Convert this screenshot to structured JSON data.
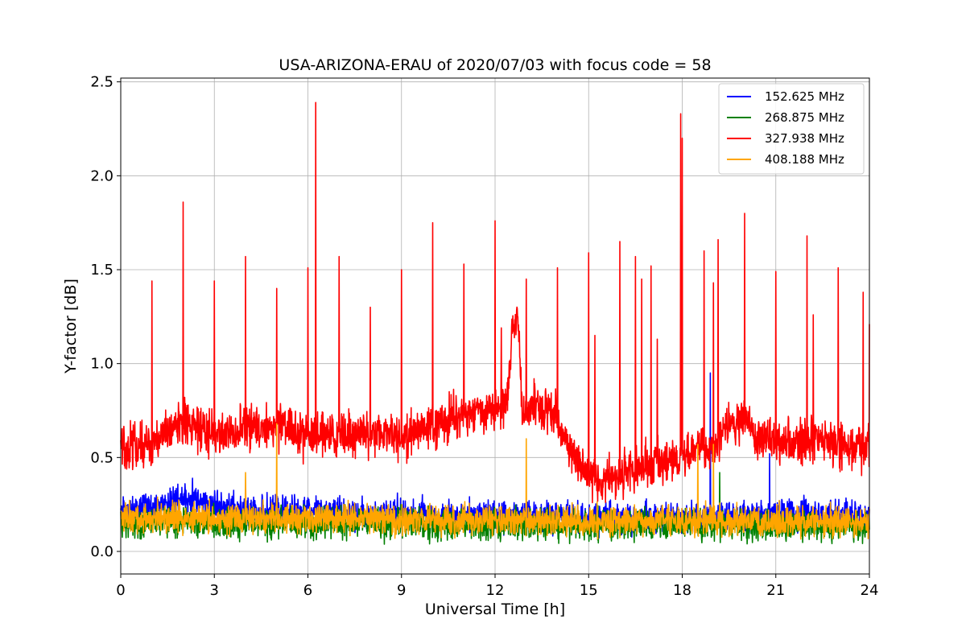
{
  "chart_data": {
    "type": "line",
    "title": "USA-ARIZONA-ERAU of 2020/07/03 with focus code = 58",
    "xlabel": "Universal Time [h]",
    "ylabel": "Y-factor [dB]",
    "xlim": [
      0,
      24
    ],
    "ylim": [
      -0.12,
      2.52
    ],
    "xticks": [
      0,
      3,
      6,
      9,
      12,
      15,
      18,
      21,
      24
    ],
    "xtick_labels": [
      "0",
      "3",
      "6",
      "9",
      "12",
      "15",
      "18",
      "21",
      "24"
    ],
    "yticks": [
      0.0,
      0.5,
      1.0,
      1.5,
      2.0,
      2.5
    ],
    "ytick_labels": [
      "0.0",
      "0.5",
      "1.0",
      "1.5",
      "2.0",
      "2.5"
    ],
    "grid": true,
    "legend_position": "top-right",
    "series": [
      {
        "name": "152.625 MHz",
        "color": "#0000ff",
        "noise_amplitude": 0.06,
        "baseline": [
          [
            0,
            0.21
          ],
          [
            1,
            0.24
          ],
          [
            2,
            0.27
          ],
          [
            2.5,
            0.28
          ],
          [
            3,
            0.24
          ],
          [
            4,
            0.22
          ],
          [
            6,
            0.21
          ],
          [
            9,
            0.2
          ],
          [
            12,
            0.19
          ],
          [
            15,
            0.18
          ],
          [
            18,
            0.18
          ],
          [
            21,
            0.19
          ],
          [
            24,
            0.2
          ]
        ],
        "spikes": [
          [
            2.3,
            0.39
          ],
          [
            18.9,
            0.95
          ],
          [
            20.8,
            0.52
          ]
        ]
      },
      {
        "name": "268.875 MHz",
        "color": "#008000",
        "noise_amplitude": 0.06,
        "baseline": [
          [
            0,
            0.15
          ],
          [
            3,
            0.15
          ],
          [
            6,
            0.15
          ],
          [
            9,
            0.15
          ],
          [
            12,
            0.14
          ],
          [
            15,
            0.14
          ],
          [
            18,
            0.14
          ],
          [
            21,
            0.14
          ],
          [
            24,
            0.13
          ]
        ],
        "spikes": [
          [
            19.2,
            0.42
          ]
        ]
      },
      {
        "name": "327.938 MHz",
        "color": "#ff0000",
        "noise_amplitude": 0.09,
        "baseline": [
          [
            0,
            0.55
          ],
          [
            1,
            0.58
          ],
          [
            2,
            0.68
          ],
          [
            3,
            0.62
          ],
          [
            4,
            0.65
          ],
          [
            5,
            0.68
          ],
          [
            6,
            0.62
          ],
          [
            8,
            0.62
          ],
          [
            9,
            0.62
          ],
          [
            10,
            0.66
          ],
          [
            11,
            0.74
          ],
          [
            12,
            0.76
          ],
          [
            12.4,
            0.78
          ],
          [
            12.55,
            1.2
          ],
          [
            12.75,
            1.25
          ],
          [
            12.85,
            0.75
          ],
          [
            13.5,
            0.78
          ],
          [
            14,
            0.7
          ],
          [
            14.5,
            0.5
          ],
          [
            15,
            0.42
          ],
          [
            15.5,
            0.38
          ],
          [
            16,
            0.4
          ],
          [
            17,
            0.47
          ],
          [
            18,
            0.5
          ],
          [
            19,
            0.58
          ],
          [
            19.5,
            0.66
          ],
          [
            20,
            0.7
          ],
          [
            20.5,
            0.6
          ],
          [
            21,
            0.58
          ],
          [
            22,
            0.6
          ],
          [
            23,
            0.56
          ],
          [
            24,
            0.56
          ]
        ],
        "spikes": [
          [
            1.0,
            1.44
          ],
          [
            2.0,
            1.86
          ],
          [
            3.0,
            1.44
          ],
          [
            4.0,
            1.57
          ],
          [
            5.0,
            1.4
          ],
          [
            6.0,
            1.51
          ],
          [
            6.25,
            2.39
          ],
          [
            7.0,
            1.57
          ],
          [
            8.0,
            1.3
          ],
          [
            9.0,
            1.5
          ],
          [
            10.0,
            1.75
          ],
          [
            11.0,
            1.53
          ],
          [
            12.0,
            1.76
          ],
          [
            12.2,
            1.19
          ],
          [
            13.0,
            1.45
          ],
          [
            14.0,
            1.51
          ],
          [
            15.0,
            1.59
          ],
          [
            15.2,
            1.15
          ],
          [
            16.0,
            1.65
          ],
          [
            16.5,
            1.57
          ],
          [
            16.7,
            1.45
          ],
          [
            17.0,
            1.52
          ],
          [
            17.2,
            1.13
          ],
          [
            17.95,
            2.33
          ],
          [
            18.0,
            2.2
          ],
          [
            18.7,
            1.6
          ],
          [
            19.0,
            1.43
          ],
          [
            19.15,
            1.66
          ],
          [
            20.0,
            1.8
          ],
          [
            21.0,
            1.49
          ],
          [
            22.0,
            1.68
          ],
          [
            22.2,
            1.26
          ],
          [
            23.0,
            1.51
          ],
          [
            23.8,
            1.38
          ],
          [
            24.0,
            1.21
          ]
        ]
      },
      {
        "name": "408.188 MHz",
        "color": "#ffa500",
        "noise_amplitude": 0.06,
        "baseline": [
          [
            0,
            0.18
          ],
          [
            3,
            0.18
          ],
          [
            6,
            0.18
          ],
          [
            9,
            0.17
          ],
          [
            12,
            0.17
          ],
          [
            15,
            0.16
          ],
          [
            18,
            0.16
          ],
          [
            21,
            0.16
          ],
          [
            24,
            0.16
          ]
        ],
        "spikes": [
          [
            4.0,
            0.42
          ],
          [
            5.0,
            0.68
          ],
          [
            13.0,
            0.6
          ],
          [
            18.5,
            0.57
          ],
          [
            19.0,
            0.57
          ]
        ]
      }
    ]
  }
}
